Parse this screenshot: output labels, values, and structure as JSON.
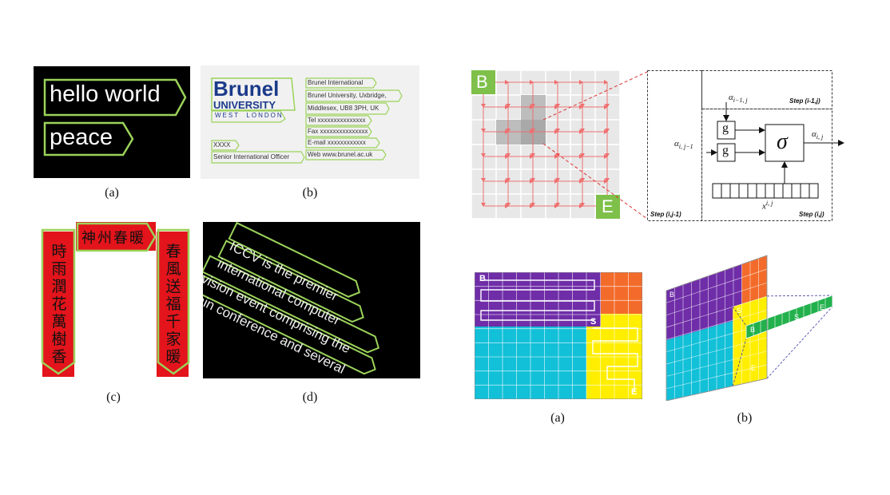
{
  "left": {
    "a": {
      "words": [
        "hello world",
        "peace"
      ],
      "caption": "(a)"
    },
    "b": {
      "logo_title": "Brunel",
      "logo_sub": "UNIVERSITY",
      "logo_city": "WEST  LONDON",
      "left_fields": [
        "XXXX",
        "Senior International Officer"
      ],
      "right_fields": [
        "Brunel International",
        "Brunel University, Uxbridge,",
        "Middlesex, UB8 3PH, UK",
        "Tel xxxxxxxxxxxxxxx",
        "Fax xxxxxxxxxxxxxxx",
        "E-mail xxxxxxxxxxxx",
        "Web www.brunel.ac.uk"
      ],
      "caption": "(b)"
    },
    "c": {
      "top": "神州春暖",
      "left": [
        "時",
        "雨",
        "潤",
        "花",
        "萬",
        "樹",
        "香"
      ],
      "right": [
        "春",
        "風",
        "送",
        "福",
        "千",
        "家",
        "暖"
      ],
      "caption": "(c)"
    },
    "d": {
      "lines": [
        "ICCV is the premier",
        "international computer",
        "vision event comprising the",
        "main conference and several"
      ],
      "caption": "(d)"
    }
  },
  "right": {
    "top": {
      "label_B": "B",
      "label_E": "E",
      "step_prev_col": "Step (i-1,j)",
      "step_prev_row": "Step (i,j-1)",
      "step_cur": "Step (i,j)",
      "alpha_top": "α",
      "alpha_top_sub": "i−1, j",
      "alpha_left": "α",
      "alpha_left_sub": "i, j−1",
      "alpha_out": "α",
      "alpha_out_sub": "i, j",
      "gate": "g",
      "sigma": "σ",
      "input_x": "x",
      "input_x_sup": "i, j"
    },
    "bottom": {
      "a_B": "B",
      "a_S": "S",
      "a_E": "E",
      "b_B": "B",
      "b_S": "S",
      "b_E": "E",
      "strip_B": "B",
      "strip_S": "S",
      "strip_E": "E",
      "caption_a": "(a)",
      "caption_b": "(b)"
    }
  }
}
